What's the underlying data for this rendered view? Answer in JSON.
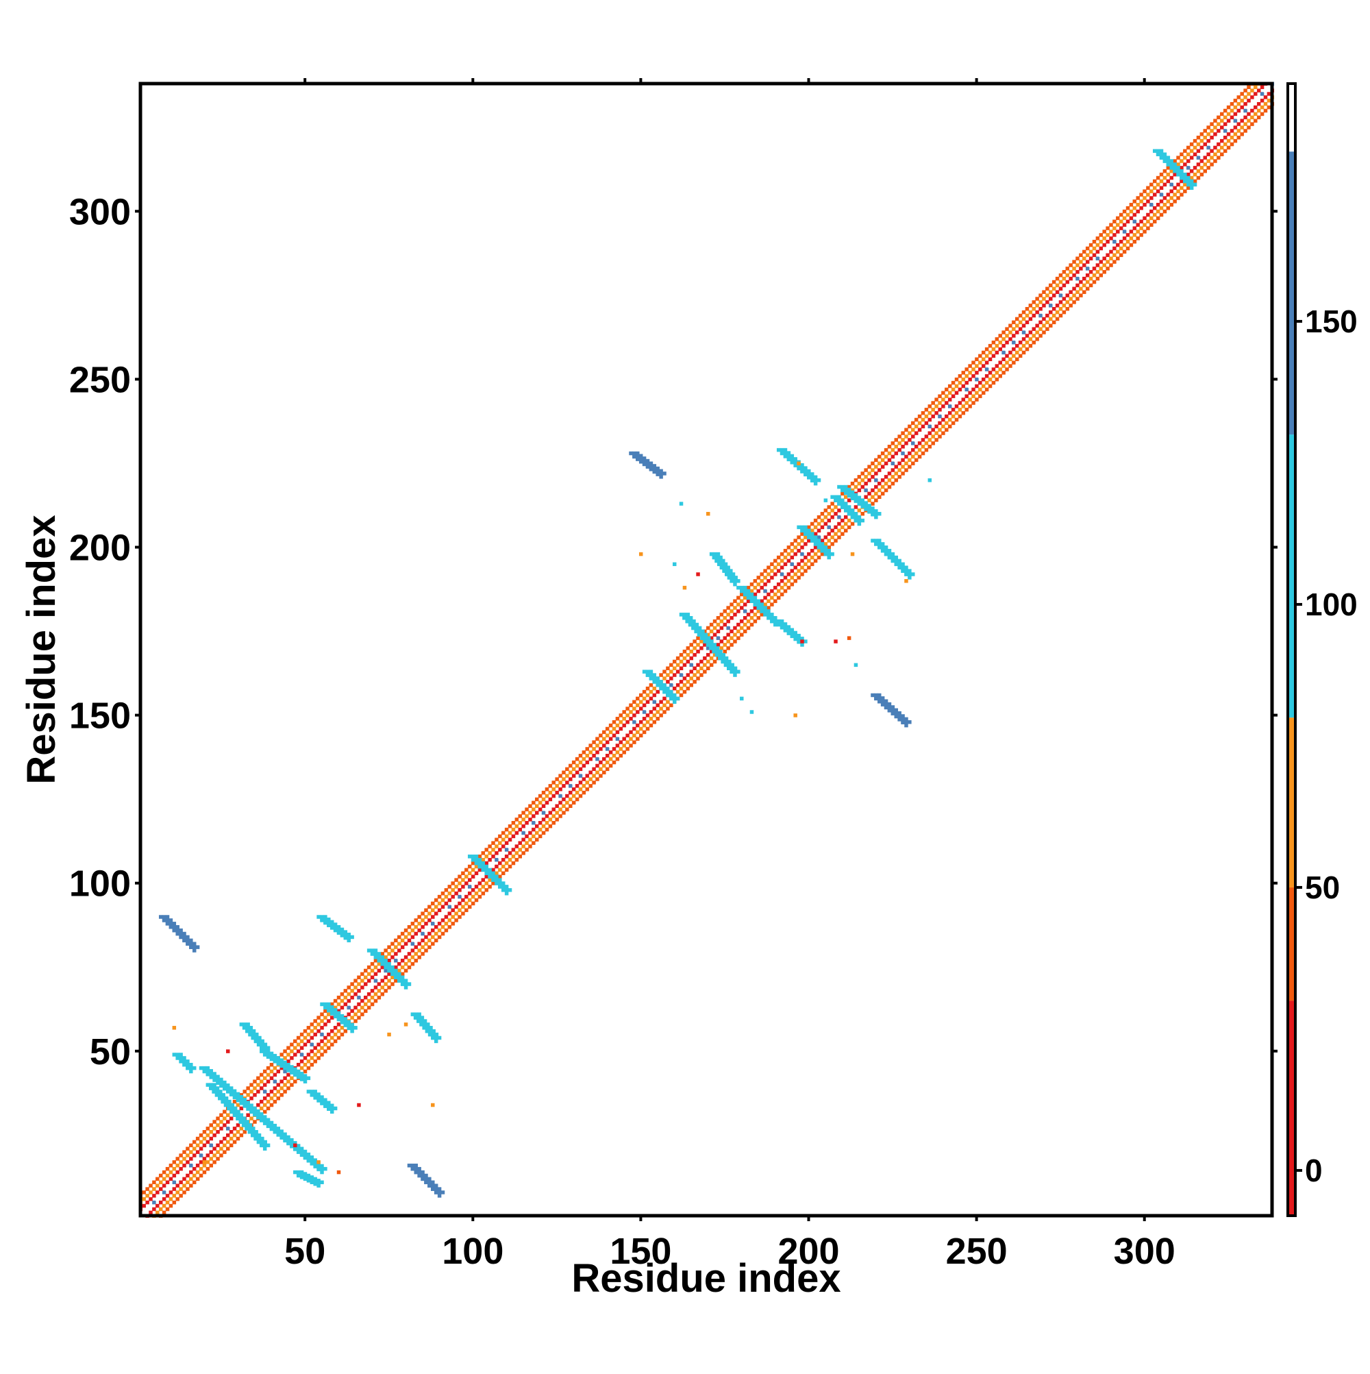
{
  "chart_data": {
    "type": "heatmap",
    "title": "",
    "xlabel": "Residue index",
    "ylabel": "Residue index",
    "xlim": [
      1,
      338
    ],
    "ylim": [
      1,
      338
    ],
    "x_ticks": [
      50,
      100,
      150,
      200,
      250,
      300
    ],
    "y_ticks": [
      50,
      100,
      150,
      200,
      250,
      300
    ],
    "grid": false,
    "legend": "none",
    "colorbar": {
      "placement": "right",
      "range": [
        -8,
        192
      ],
      "ticks": [
        0,
        50,
        100,
        150
      ],
      "bands": [
        {
          "from": -8,
          "to": 30,
          "color": "#e31a1c"
        },
        {
          "from": 30,
          "to": 50,
          "color": "#f0590e"
        },
        {
          "from": 50,
          "to": 80,
          "color": "#f7941d"
        },
        {
          "from": 80,
          "to": 130,
          "color": "#2ec8e0"
        },
        {
          "from": 130,
          "to": 180,
          "color": "#4a7fb8"
        },
        {
          "from": 180,
          "to": 192,
          "color": "#ffffff"
        }
      ]
    },
    "diagonal": {
      "from": 1,
      "to": 338
    },
    "contact_blobs": [
      {
        "x1": 8,
        "y1": 90,
        "x2": 17,
        "y2": 81,
        "value": 140
      },
      {
        "x1": 55,
        "y1": 90,
        "x2": 63,
        "y2": 84,
        "value": 120
      },
      {
        "x1": 83,
        "y1": 61,
        "x2": 89,
        "y2": 54,
        "value": 115
      },
      {
        "x1": 82,
        "y1": 16,
        "x2": 90,
        "y2": 8,
        "value": 140
      },
      {
        "x1": 20,
        "y1": 45,
        "x2": 55,
        "y2": 15,
        "value": 110
      },
      {
        "x1": 22,
        "y1": 40,
        "x2": 38,
        "y2": 22,
        "value": 120
      },
      {
        "x1": 32,
        "y1": 58,
        "x2": 38,
        "y2": 51,
        "value": 105
      },
      {
        "x1": 52,
        "y1": 38,
        "x2": 58,
        "y2": 33,
        "value": 105
      },
      {
        "x1": 38,
        "y1": 50,
        "x2": 50,
        "y2": 42,
        "value": 95
      },
      {
        "x1": 56,
        "y1": 64,
        "x2": 64,
        "y2": 57,
        "value": 95
      },
      {
        "x1": 12,
        "y1": 49,
        "x2": 16,
        "y2": 45,
        "value": 100
      },
      {
        "x1": 48,
        "y1": 14,
        "x2": 54,
        "y2": 11,
        "value": 100
      },
      {
        "x1": 148,
        "y1": 228,
        "x2": 156,
        "y2": 222,
        "value": 140
      },
      {
        "x1": 192,
        "y1": 229,
        "x2": 202,
        "y2": 220,
        "value": 120
      },
      {
        "x1": 220,
        "y1": 202,
        "x2": 230,
        "y2": 192,
        "value": 120
      },
      {
        "x1": 220,
        "y1": 156,
        "x2": 229,
        "y2": 148,
        "value": 140
      },
      {
        "x1": 152,
        "y1": 163,
        "x2": 160,
        "y2": 155,
        "value": 110
      },
      {
        "x1": 163,
        "y1": 180,
        "x2": 178,
        "y2": 163,
        "value": 110
      },
      {
        "x1": 172,
        "y1": 198,
        "x2": 178,
        "y2": 190,
        "value": 110
      },
      {
        "x1": 180,
        "y1": 188,
        "x2": 190,
        "y2": 178,
        "value": 100
      },
      {
        "x1": 191,
        "y1": 178,
        "x2": 198,
        "y2": 172,
        "value": 110
      },
      {
        "x1": 198,
        "y1": 206,
        "x2": 206,
        "y2": 198,
        "value": 110
      },
      {
        "x1": 208,
        "y1": 215,
        "x2": 215,
        "y2": 208,
        "value": 105
      },
      {
        "x1": 210,
        "y1": 218,
        "x2": 220,
        "y2": 210,
        "value": 100
      },
      {
        "x1": 304,
        "y1": 318,
        "x2": 314,
        "y2": 308,
        "value": 110
      },
      {
        "x1": 100,
        "y1": 108,
        "x2": 110,
        "y2": 98,
        "value": 110
      },
      {
        "x1": 70,
        "y1": 80,
        "x2": 80,
        "y2": 70,
        "value": 110
      }
    ],
    "scatter_points": [
      {
        "x": 11,
        "y": 57,
        "value": 55
      },
      {
        "x": 88,
        "y": 34,
        "value": 60
      },
      {
        "x": 27,
        "y": 50,
        "value": 15
      },
      {
        "x": 20,
        "y": 17,
        "value": 50
      },
      {
        "x": 60,
        "y": 14,
        "value": 45
      },
      {
        "x": 54,
        "y": 17,
        "value": 60
      },
      {
        "x": 66,
        "y": 34,
        "value": 20
      },
      {
        "x": 47,
        "y": 22,
        "value": 20
      },
      {
        "x": 75,
        "y": 55,
        "value": 50
      },
      {
        "x": 80,
        "y": 58,
        "value": 60
      },
      {
        "x": 180,
        "y": 155,
        "value": 100
      },
      {
        "x": 183,
        "y": 151,
        "value": 100
      },
      {
        "x": 196,
        "y": 150,
        "value": 60
      },
      {
        "x": 214,
        "y": 165,
        "value": 110
      },
      {
        "x": 212,
        "y": 173,
        "value": 40
      },
      {
        "x": 208,
        "y": 172,
        "value": 15
      },
      {
        "x": 198,
        "y": 172,
        "value": 15
      },
      {
        "x": 163,
        "y": 188,
        "value": 50
      },
      {
        "x": 160,
        "y": 195,
        "value": 100
      },
      {
        "x": 150,
        "y": 198,
        "value": 60
      },
      {
        "x": 162,
        "y": 213,
        "value": 100
      },
      {
        "x": 170,
        "y": 210,
        "value": 50
      },
      {
        "x": 167,
        "y": 192,
        "value": 15
      },
      {
        "x": 205,
        "y": 214,
        "value": 100
      },
      {
        "x": 213,
        "y": 198,
        "value": 50
      },
      {
        "x": 229,
        "y": 190,
        "value": 60
      },
      {
        "x": 197,
        "y": 225,
        "value": 50
      },
      {
        "x": 236,
        "y": 220,
        "value": 100
      }
    ]
  }
}
